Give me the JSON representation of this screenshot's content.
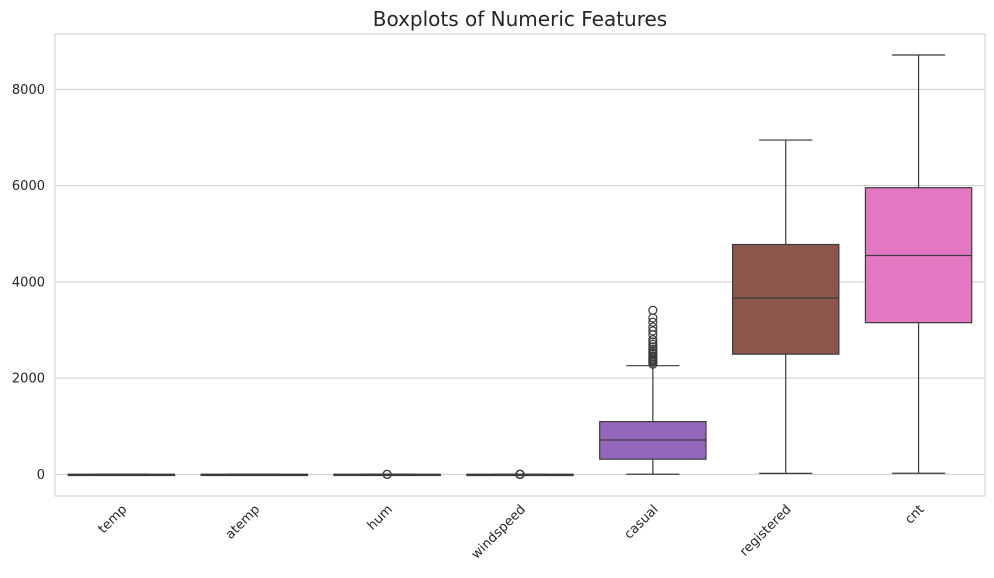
{
  "chart_data": {
    "type": "boxplot",
    "title": "Boxplots of Numeric Features",
    "xlabel": "",
    "ylabel": "",
    "ylim": [
      -450,
      9150
    ],
    "yticks": [
      0,
      2000,
      4000,
      6000,
      8000
    ],
    "ytick_labels": [
      "0",
      "2000",
      "4000",
      "6000",
      "8000"
    ],
    "grid": "horizontal",
    "categories": [
      "temp",
      "atemp",
      "hum",
      "windspeed",
      "casual",
      "registered",
      "cnt"
    ],
    "boxes": [
      {
        "label": "temp",
        "color": "#1f77b4",
        "whisker_low": 0.06,
        "q1": 0.34,
        "median": 0.5,
        "q3": 0.66,
        "whisker_high": 0.86,
        "outliers": []
      },
      {
        "label": "atemp",
        "color": "#ff7f0e",
        "whisker_low": 0.08,
        "q1": 0.34,
        "median": 0.49,
        "q3": 0.61,
        "whisker_high": 0.84,
        "outliers": []
      },
      {
        "label": "hum",
        "color": "#2ca02c",
        "whisker_low": 0.25,
        "q1": 0.52,
        "median": 0.63,
        "q3": 0.73,
        "whisker_high": 0.97,
        "outliers": [
          0.0,
          0.19
        ]
      },
      {
        "label": "windspeed",
        "color": "#d62728",
        "whisker_low": 0.02,
        "q1": 0.13,
        "median": 0.18,
        "q3": 0.23,
        "whisker_high": 0.38,
        "outliers": [
          0.38,
          0.4,
          0.42,
          0.44,
          0.45,
          0.46,
          0.48,
          0.5,
          0.51
        ]
      },
      {
        "label": "casual",
        "color": "#9467bd",
        "whisker_low": 2,
        "q1": 315,
        "median": 713,
        "q3": 1096,
        "whisker_high": 2258,
        "outliers": [
          2290,
          2330,
          2355,
          2380,
          2400,
          2430,
          2460,
          2500,
          2520,
          2560,
          2600,
          2650,
          2700,
          2750,
          2800,
          2900,
          2980,
          3060,
          3160,
          3250,
          3410
        ]
      },
      {
        "label": "registered",
        "color": "#8c564b",
        "whisker_low": 20,
        "q1": 2497,
        "median": 3662,
        "q3": 4776,
        "whisker_high": 6946,
        "outliers": []
      },
      {
        "label": "cnt",
        "color": "#e377c2",
        "whisker_low": 22,
        "q1": 3152,
        "median": 4548,
        "q3": 5956,
        "whisker_high": 8714,
        "outliers": []
      }
    ]
  },
  "colors": {
    "grid": "#cccccc",
    "spine": "#cccccc",
    "line": "#3b3b3b",
    "text": "#262626"
  }
}
